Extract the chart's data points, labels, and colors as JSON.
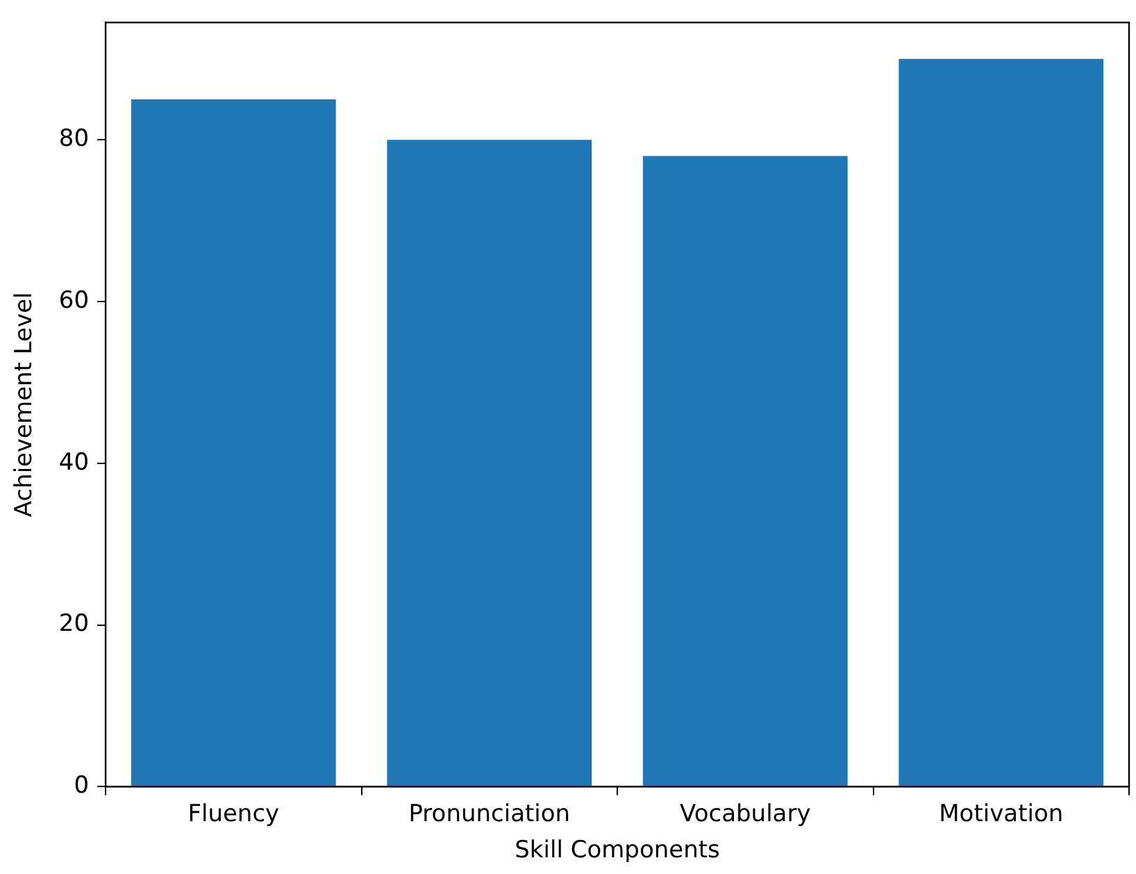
{
  "chart_data": {
    "type": "bar",
    "xlabel": "Skill Components",
    "ylabel": "Achievement Level",
    "categories": [
      "Fluency",
      "Pronunciation",
      "Vocabulary",
      "Motivation"
    ],
    "values": [
      85,
      80,
      78,
      90
    ],
    "color": "#1f77b4",
    "ylim": [
      0,
      94.5
    ],
    "yticks": [
      0,
      20,
      40,
      60,
      80
    ],
    "grid": false,
    "legend": false
  }
}
